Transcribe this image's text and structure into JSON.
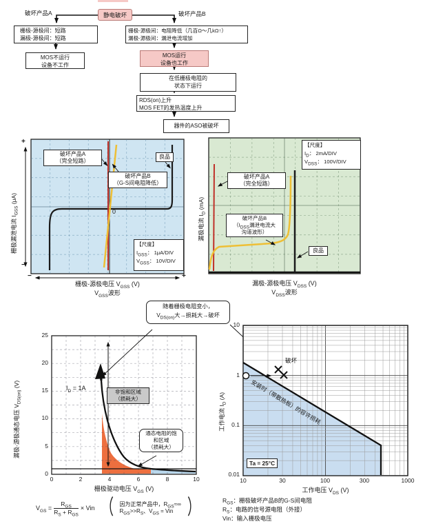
{
  "colors": {
    "pink_fill": "#f6c9c6",
    "pink_border": "#b97a76",
    "scope_blue_bg": "#cfe5f2",
    "scope_green_bg": "#d9e9d2",
    "trace_red": "#c03028",
    "trace_yellow": "#eebf35",
    "trace_black": "#1a1a1a",
    "region_orange": "#ed6f3f",
    "region_lightblue": "#b9d7ec",
    "soa_blue": "#c9ddf0",
    "gray_box": "#c9c9c9"
  },
  "flowchart": {
    "root": "静电破坏",
    "branch_a": "破坏产品A",
    "branch_b": "破坏产品B",
    "box_a1": [
      "栅极-源极间：短路",
      "漏极-源极间：短路"
    ],
    "box_a2": [
      "MOS不运行",
      "设备不工作"
    ],
    "box_b1": [
      "栅极-源极间：电阻降低（几百Ω～几kΩ↑）",
      "漏极-源极间：漏泄电流增加"
    ],
    "box_b2": [
      "MOS运行",
      "设备也工作"
    ],
    "box_b3": [
      "在低栅极电阻的",
      "状态下运行"
    ],
    "box_b4": [
      "RDS(on)上升",
      "MOS FET的发热温度上升"
    ],
    "box_b5": "器件的ASO被破坏"
  },
  "vgss_chart": {
    "label_a": [
      "破坏产品A",
      "（完全短路）"
    ],
    "label_b": [
      "破坏产品B",
      "（G-S间电阻降低）"
    ],
    "label_good": "良品",
    "zero": "0",
    "scale": {
      "title": "【尺度】",
      "l1": {
        "pre": "I",
        "sub": "GSS",
        "post": "： 1μA/DIV"
      },
      "l2": {
        "pre": "V",
        "sub": "GSS",
        "post": "： 10V/DIV"
      }
    },
    "x_axis": {
      "pre": "栅极-源极电压 V",
      "sub": "GSS",
      "post": "  (V)"
    },
    "x_wave": {
      "pre": "V",
      "sub": "GSS",
      "post": "波形"
    },
    "y_axis": {
      "pre": "栅极漏泄电流 I",
      "sub": "GSS",
      "post": " (μA)"
    },
    "plus": "+",
    "minus": "−"
  },
  "vdss_chart": {
    "scale": {
      "title": "【尺度】",
      "l1": {
        "pre": "I",
        "sub": "D",
        "post": "： 2mA/DIV"
      },
      "l2": {
        "pre": "V",
        "sub": "DSS",
        "post": "： 100V/DIV"
      }
    },
    "label_a": [
      "破坏产品A",
      "（完全短路）"
    ],
    "label_b": {
      "l1": "破坏产品B",
      "l2": {
        "pre": "（I",
        "sub": "DSS",
        "post": "漏泄电流大"
      },
      "l3": "沟道波形）"
    },
    "label_good": "良品",
    "x_axis": {
      "pre": "漏极-源极电压 V",
      "sub": "DSS",
      "post": "  (V)"
    },
    "x_wave": {
      "pre": "V",
      "sub": "DSS",
      "post": "波形"
    },
    "y_axis": {
      "pre": "漏极电流 I",
      "sub": "D",
      "post": " (mA)"
    }
  },
  "vdson_chart": {
    "callout": {
      "l1": "随着栅极电阻变小，",
      "l2": {
        "pre": "V",
        "sub": "DS(on)",
        "post": "大→损耗大→破坏"
      }
    },
    "id_label": {
      "pre": "I",
      "sub": "D",
      "post": " = 1A"
    },
    "region_unsat": [
      "非饱和区域",
      "（损耗大）"
    ],
    "region_sat": [
      "通态电阻的饱",
      "和区域",
      "（损耗大）"
    ],
    "x_ticks": [
      "0",
      "2",
      "4",
      "6",
      "8",
      "10"
    ],
    "y_ticks": [
      "25",
      "20",
      "15",
      "10",
      "5",
      "0"
    ],
    "x_axis": {
      "pre": "栅极驱动电压 V",
      "sub": "GS",
      "post": "  (V)"
    },
    "y_axis": {
      "pre": "漏极-源极通态电压 V",
      "sub": "DS(on)",
      "post": "  (V)"
    }
  },
  "soa_chart": {
    "damage": "破坏",
    "diag_label": "安装时（带散热板）的容许损耗",
    "ta": "Ta = 25°C",
    "x_ticks": [
      "10",
      "30",
      "100",
      "300",
      "1000"
    ],
    "y_ticks": [
      "10",
      "1",
      "0.1",
      "0.01"
    ],
    "x_axis": {
      "pre": "工作电压 V",
      "sub": "DS",
      "post": "  (V)"
    },
    "y_axis": {
      "pre": "工作电流 I",
      "sub": "D",
      "post": "  (A)"
    }
  },
  "formula": {
    "lhs": {
      "pre": "V",
      "sub": "GS",
      "post": " ="
    },
    "num": {
      "pre": "R",
      "sub": "GS"
    },
    "den": {
      "p1": "R",
      "s1": "S",
      "p2": " + R",
      "s2": "GS"
    },
    "times": "× Vin",
    "open": "（",
    "close": "）",
    "note1": {
      "pre": "因为正常产品中，R",
      "sub": "GS",
      "post": "≈∞"
    },
    "note2": {
      "p1": "R",
      "s1": "GS",
      "p2": ">>R",
      "s2": "S",
      "p3": "、V",
      "s3": "GS",
      "p4": " = Vin"
    }
  },
  "legend": {
    "l1": {
      "pre": "R",
      "sub": "GS",
      "post": "：栅极破坏产品B的G-S间电阻"
    },
    "l2": {
      "pre": "R",
      "sub": "S",
      "post": "：电路的信号源电阻（外接）"
    },
    "l3": {
      "pre": "Vin",
      "sub": "",
      "post": "：输入栅极电压"
    }
  },
  "chart_data": [
    {
      "type": "line",
      "title": "VGSS波形",
      "xlabel": "栅极-源极电压 VGSS (V)",
      "ylabel": "栅极漏泄电流 IGSS (μA)",
      "scale": {
        "IGSS": "1μA/DIV",
        "VGSS": "10V/DIV"
      },
      "series": [
        {
          "name": "破坏产品A（完全短路）",
          "shape": "vertical line at VGSS = 0"
        },
        {
          "name": "破坏产品B（G-S间电阻降低）",
          "shape": "steep resistive line through origin"
        },
        {
          "name": "良品",
          "shape": "near-zero leakage with gate breakdown at about ±3.5 divisions"
        }
      ],
      "grid": true,
      "legend_position": "inside"
    },
    {
      "type": "line",
      "title": "VDSS波形",
      "xlabel": "漏极-源极电压 VDSS (V)",
      "ylabel": "漏极电流 ID (mA)",
      "scale": {
        "ID": "2mA/DIV",
        "VDSS": "100V/DIV"
      },
      "series": [
        {
          "name": "破坏产品A（完全短路）",
          "shape": "vertical line near VDSS = 0"
        },
        {
          "name": "破坏产品B（IDSS漏泄电流大，沟道波形）",
          "shape": "slowly rising leakage current joining breakdown"
        },
        {
          "name": "良品",
          "shape": "zero current until sharp breakdown at about 4 divisions"
        }
      ],
      "grid": true,
      "legend_position": "inside"
    },
    {
      "type": "line",
      "title": "VDS(on) 对 栅极驱动电压（ID = 1A）",
      "xlabel": "栅极驱动电压 VGS (V)",
      "ylabel": "漏极-源极通态电压 VDS(on) (V)",
      "xlim": [
        0,
        10
      ],
      "ylim": [
        0,
        25
      ],
      "x": [
        3.5,
        3.6,
        3.8,
        4.0,
        4.3,
        5.0,
        5.5,
        6.0,
        7.0,
        8.0,
        10.0
      ],
      "y": [
        25,
        18,
        12,
        8,
        5,
        3,
        2.2,
        1.5,
        1.0,
        0.8,
        0.6
      ],
      "annotations": [
        "ID = 1A",
        "非饱和区域（损耗大）",
        "通态电阻的饱和区域（损耗大）",
        "随着栅极电阻变小，VDS(on)大→损耗大→破坏"
      ],
      "grid": true
    },
    {
      "type": "line",
      "title": "安全工作区（工作电流-工作电压）",
      "xlabel": "工作电压 VDS (V)",
      "ylabel": "工作电流 ID (A)",
      "xscale": "log",
      "yscale": "log",
      "xlim": [
        10,
        1000
      ],
      "ylim": [
        0.01,
        10
      ],
      "series": [
        {
          "name": "安装时（带散热板）的容许损耗",
          "x": [
            10,
            500,
            500
          ],
          "y": [
            1.8,
            0.04,
            0.01
          ]
        }
      ],
      "points": [
        {
          "x": 12,
          "y": 1,
          "marker": "circle"
        },
        {
          "x": 28,
          "y": 1.1,
          "marker": "x",
          "label": "破坏"
        },
        {
          "x": 33,
          "y": 0.9,
          "marker": "x",
          "label": "破坏"
        }
      ],
      "note": "Ta = 25°C",
      "grid": true
    }
  ]
}
